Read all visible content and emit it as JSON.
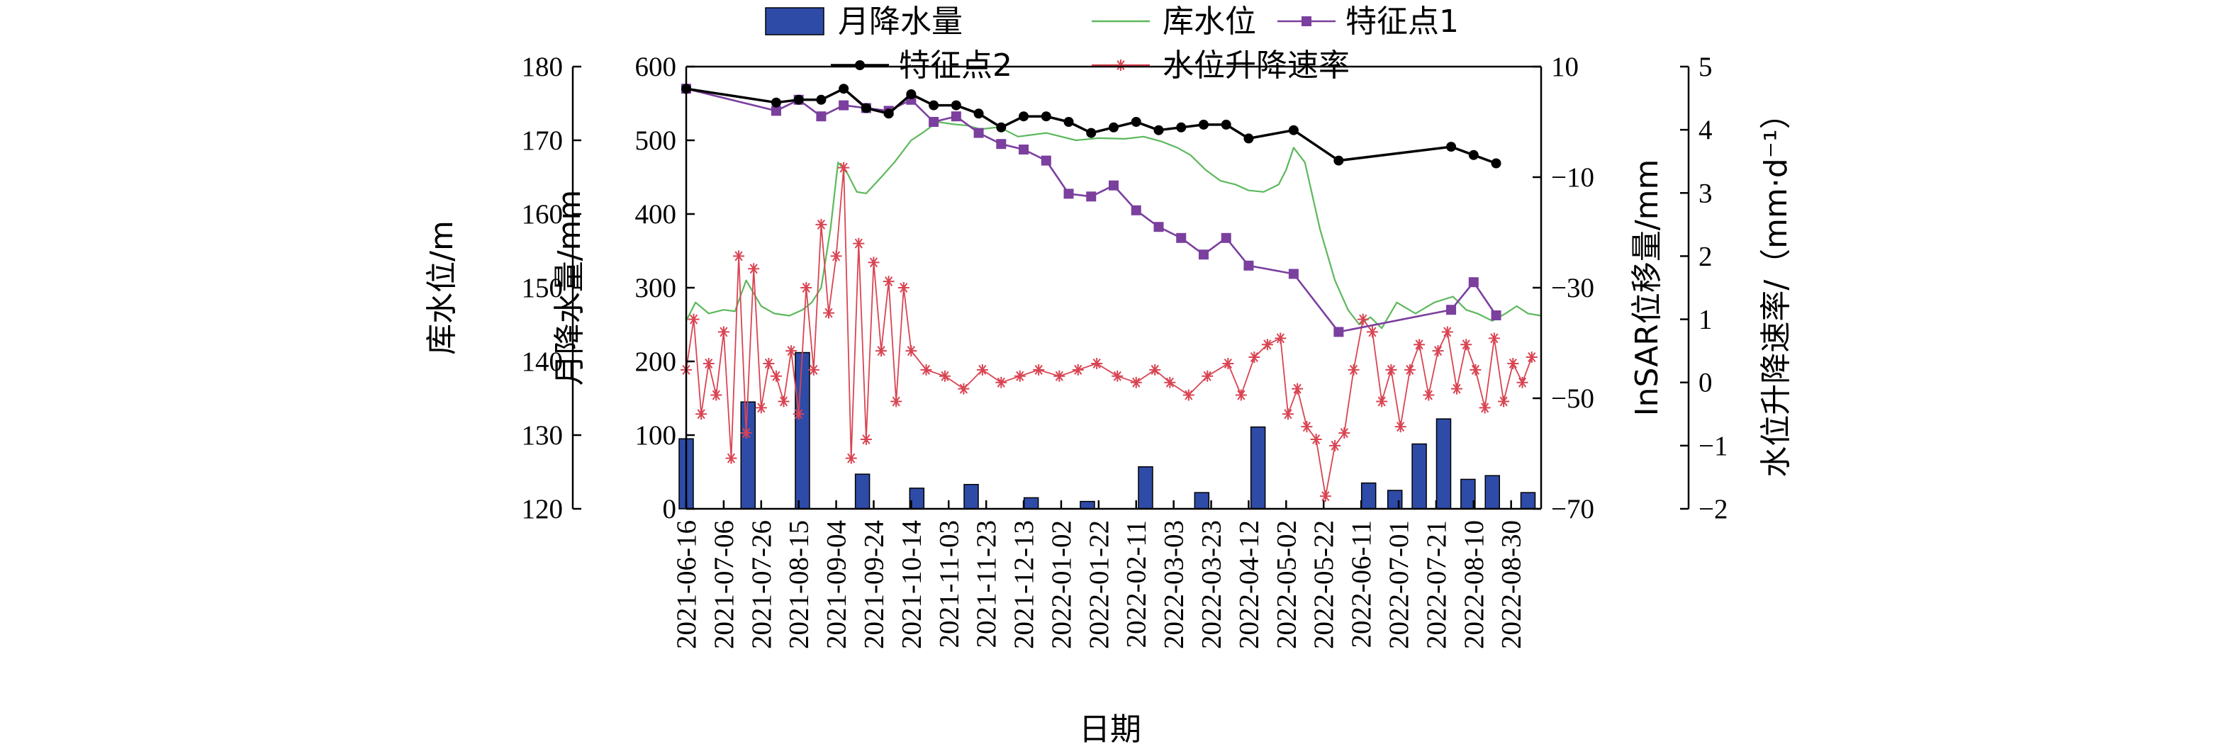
{
  "chart_data": {
    "type": "bar",
    "xlabel": "日期",
    "categories": [
      "2021-06-16",
      "2021-07-06",
      "2021-07-26",
      "2021-08-15",
      "2021-09-04",
      "2021-09-24",
      "2021-10-14",
      "2021-11-03",
      "2021-11-23",
      "2021-12-13",
      "2022-01-02",
      "2022-01-22",
      "2022-02-11",
      "2022-03-03",
      "2022-03-23",
      "2022-04-12",
      "2022-05-02",
      "2022-05-22",
      "2022-06-11",
      "2022-07-01",
      "2022-07-21",
      "2022-08-10",
      "2022-08-30"
    ],
    "date_range": [
      "2021-06-16",
      "2022-09-15"
    ],
    "axes": {
      "water_level": {
        "label": "库水位/m",
        "range": [
          120,
          180
        ],
        "ticks": [
          120,
          130,
          140,
          150,
          160,
          170,
          180
        ]
      },
      "rainfall": {
        "label": "月降水量/mm",
        "range": [
          0,
          600
        ],
        "ticks": [
          0,
          100,
          200,
          300,
          400,
          500,
          600
        ]
      },
      "insar": {
        "label": "InSAR位移量/mm",
        "range": [
          -70,
          10
        ],
        "ticks": [
          -70,
          -50,
          -30,
          -10,
          10
        ],
        "tick_labels": [
          "−70",
          "−50",
          "−30",
          "−10",
          "10"
        ]
      },
      "rate": {
        "label": "水位升降速率/（mm·d⁻¹）",
        "range": [
          -2,
          5
        ],
        "ticks": [
          -2,
          -1,
          0,
          1,
          2,
          3,
          4,
          5
        ],
        "tick_labels": [
          "−2",
          "−1",
          "0",
          "1",
          "2",
          "3",
          "4",
          "5"
        ]
      }
    },
    "legend": {
      "placement": "top",
      "entries": [
        {
          "label": "月降水量",
          "kind": "bar"
        },
        {
          "label": "库水位",
          "kind": "line"
        },
        {
          "label": "特征点1",
          "kind": "square"
        },
        {
          "label": "特征点2",
          "kind": "circle"
        },
        {
          "label": "水位升降速率",
          "kind": "star"
        }
      ]
    },
    "series": [
      {
        "name": "月降水量",
        "type": "bar",
        "axis": "rainfall",
        "unit": "mm",
        "color": "#2E4BA8",
        "x": [
          "2021-06-16",
          "2021-07-19",
          "2021-08-17",
          "2021-09-18",
          "2021-10-17",
          "2021-11-15",
          "2021-12-17",
          "2022-01-16",
          "2022-02-16",
          "2022-03-18",
          "2022-04-17",
          "2022-05-17",
          "2022-06-15",
          "2022-06-29",
          "2022-07-12",
          "2022-07-25",
          "2022-08-07",
          "2022-08-20",
          "2022-09-08"
        ],
        "values": [
          95,
          145,
          212,
          47,
          28,
          33,
          15,
          10,
          57,
          22,
          111,
          0,
          35,
          25,
          88,
          122,
          40,
          45,
          22
        ]
      },
      {
        "name": "库水位",
        "type": "line",
        "axis": "water_level",
        "unit": "m",
        "color": "#5CB85C",
        "x": [
          "2021-06-16",
          "2021-06-21",
          "2021-06-28",
          "2021-07-06",
          "2021-07-12",
          "2021-07-18",
          "2021-07-26",
          "2021-08-02",
          "2021-08-10",
          "2021-08-17",
          "2021-08-22",
          "2021-08-27",
          "2021-09-01",
          "2021-09-05",
          "2021-09-10",
          "2021-09-15",
          "2021-09-20",
          "2021-09-28",
          "2021-10-05",
          "2021-10-14",
          "2021-10-20",
          "2021-10-28",
          "2021-11-05",
          "2021-11-13",
          "2021-11-20",
          "2021-11-30",
          "2021-12-10",
          "2021-12-25",
          "2022-01-10",
          "2022-01-22",
          "2022-02-05",
          "2022-02-15",
          "2022-02-25",
          "2022-03-05",
          "2022-03-12",
          "2022-03-20",
          "2022-03-28",
          "2022-04-05",
          "2022-04-12",
          "2022-04-20",
          "2022-04-28",
          "2022-05-02",
          "2022-05-06",
          "2022-05-12",
          "2022-05-20",
          "2022-05-28",
          "2022-06-04",
          "2022-06-10",
          "2022-06-16",
          "2022-06-22",
          "2022-06-30",
          "2022-07-10",
          "2022-07-20",
          "2022-07-30",
          "2022-08-06",
          "2022-08-12",
          "2022-08-20",
          "2022-08-27",
          "2022-09-02",
          "2022-09-08",
          "2022-09-15"
        ],
        "values": [
          145.5,
          148,
          146.5,
          147,
          146.8,
          151,
          147.5,
          146.5,
          146.2,
          147,
          148,
          150,
          158,
          167,
          165.5,
          163,
          162.8,
          165,
          167,
          170,
          171,
          172.5,
          172.2,
          172,
          171.5,
          171.8,
          170.5,
          171,
          170,
          170.3,
          170.2,
          170.5,
          169.8,
          169,
          168,
          166,
          164.5,
          164,
          163.2,
          163,
          164,
          166,
          169,
          167,
          158,
          151,
          147,
          145,
          146,
          144.5,
          148,
          146.5,
          148,
          148.8,
          147,
          146.5,
          145.5,
          146.5,
          147.5,
          146.5,
          146.2
        ]
      },
      {
        "name": "特征点1",
        "type": "line",
        "axis": "insar",
        "unit": "mm",
        "color": "#7B3F9E",
        "x": [
          "2021-06-16",
          "2021-08-03",
          "2021-08-15",
          "2021-08-27",
          "2021-09-08",
          "2021-09-20",
          "2021-10-02",
          "2021-10-14",
          "2021-10-26",
          "2021-11-07",
          "2021-11-19",
          "2021-12-01",
          "2021-12-13",
          "2021-12-25",
          "2022-01-06",
          "2022-01-18",
          "2022-01-30",
          "2022-02-11",
          "2022-02-23",
          "2022-03-07",
          "2022-03-19",
          "2022-03-31",
          "2022-04-12",
          "2022-05-06",
          "2022-05-30",
          "2022-07-29",
          "2022-08-10",
          "2022-08-22"
        ],
        "values": [
          6,
          2,
          4,
          1,
          3,
          2.5,
          2,
          4,
          0,
          1,
          -2,
          -4,
          -5,
          -7,
          -13,
          -13.5,
          -11.5,
          -16,
          -19,
          -21,
          -24,
          -21,
          -26,
          -27.5,
          -38,
          -34,
          -29,
          -35
        ]
      },
      {
        "name": "特征点2",
        "type": "line",
        "axis": "insar",
        "unit": "mm",
        "color": "#000000",
        "x": [
          "2021-06-16",
          "2021-08-03",
          "2021-08-15",
          "2021-08-27",
          "2021-09-08",
          "2021-09-20",
          "2021-10-02",
          "2021-10-14",
          "2021-10-26",
          "2021-11-07",
          "2021-11-19",
          "2021-12-01",
          "2021-12-13",
          "2021-12-25",
          "2022-01-06",
          "2022-01-18",
          "2022-01-30",
          "2022-02-11",
          "2022-02-23",
          "2022-03-07",
          "2022-03-19",
          "2022-03-31",
          "2022-04-12",
          "2022-05-06",
          "2022-05-30",
          "2022-07-29",
          "2022-08-10",
          "2022-08-22"
        ],
        "values": [
          6,
          3.5,
          4,
          4,
          6,
          2.5,
          1.5,
          5,
          3,
          3,
          1.5,
          -1,
          1,
          1,
          0,
          -2,
          -1,
          0,
          -1.5,
          -1,
          -0.5,
          -0.5,
          -3,
          -1.5,
          -7,
          -4.5,
          -6,
          -7.5
        ]
      },
      {
        "name": "水位升降速率",
        "type": "line",
        "axis": "rate",
        "unit": "mm·d⁻¹",
        "color": "#D94452",
        "x": [
          "2021-06-16",
          "2021-06-20",
          "2021-06-24",
          "2021-06-28",
          "2021-07-02",
          "2021-07-06",
          "2021-07-10",
          "2021-07-14",
          "2021-07-18",
          "2021-07-22",
          "2021-07-26",
          "2021-07-30",
          "2021-08-03",
          "2021-08-07",
          "2021-08-11",
          "2021-08-15",
          "2021-08-19",
          "2021-08-23",
          "2021-08-27",
          "2021-08-31",
          "2021-09-04",
          "2021-09-08",
          "2021-09-12",
          "2021-09-16",
          "2021-09-20",
          "2021-09-24",
          "2021-09-28",
          "2021-10-02",
          "2021-10-06",
          "2021-10-10",
          "2021-10-14",
          "2021-10-22",
          "2021-11-01",
          "2021-11-11",
          "2021-11-21",
          "2021-12-01",
          "2021-12-11",
          "2021-12-21",
          "2022-01-01",
          "2022-01-11",
          "2022-01-21",
          "2022-02-01",
          "2022-02-11",
          "2022-02-21",
          "2022-03-01",
          "2022-03-11",
          "2022-03-21",
          "2022-04-01",
          "2022-04-08",
          "2022-04-15",
          "2022-04-22",
          "2022-04-29",
          "2022-05-03",
          "2022-05-08",
          "2022-05-13",
          "2022-05-18",
          "2022-05-23",
          "2022-05-28",
          "2022-06-02",
          "2022-06-07",
          "2022-06-12",
          "2022-06-17",
          "2022-06-22",
          "2022-06-27",
          "2022-07-02",
          "2022-07-07",
          "2022-07-12",
          "2022-07-17",
          "2022-07-22",
          "2022-07-27",
          "2022-08-01",
          "2022-08-06",
          "2022-08-11",
          "2022-08-16",
          "2022-08-21",
          "2022-08-26",
          "2022-08-31",
          "2022-09-05",
          "2022-09-10"
        ],
        "values": [
          0.2,
          1,
          -0.5,
          0.3,
          -0.2,
          0.8,
          -1.2,
          2,
          -0.8,
          1.8,
          -0.4,
          0.3,
          0.1,
          -0.3,
          0.5,
          -0.5,
          1.5,
          0.2,
          2.5,
          1.1,
          2,
          3.4,
          -1.2,
          2.2,
          -0.9,
          1.9,
          0.5,
          1.6,
          -0.3,
          1.5,
          0.5,
          0.2,
          0.1,
          -0.1,
          0.2,
          0,
          0.1,
          0.2,
          0.1,
          0.2,
          0.3,
          0.1,
          0,
          0.2,
          0,
          -0.2,
          0.1,
          0.3,
          -0.2,
          0.4,
          0.6,
          0.7,
          -0.5,
          -0.1,
          -0.7,
          -0.9,
          -1.8,
          -1,
          -0.8,
          0.2,
          1,
          0.8,
          -0.3,
          0.2,
          -0.7,
          0.2,
          0.6,
          -0.2,
          0.5,
          0.8,
          -0.1,
          0.6,
          0.2,
          -0.4,
          0.7,
          -0.3,
          0.3,
          0,
          0.4
        ]
      }
    ]
  }
}
